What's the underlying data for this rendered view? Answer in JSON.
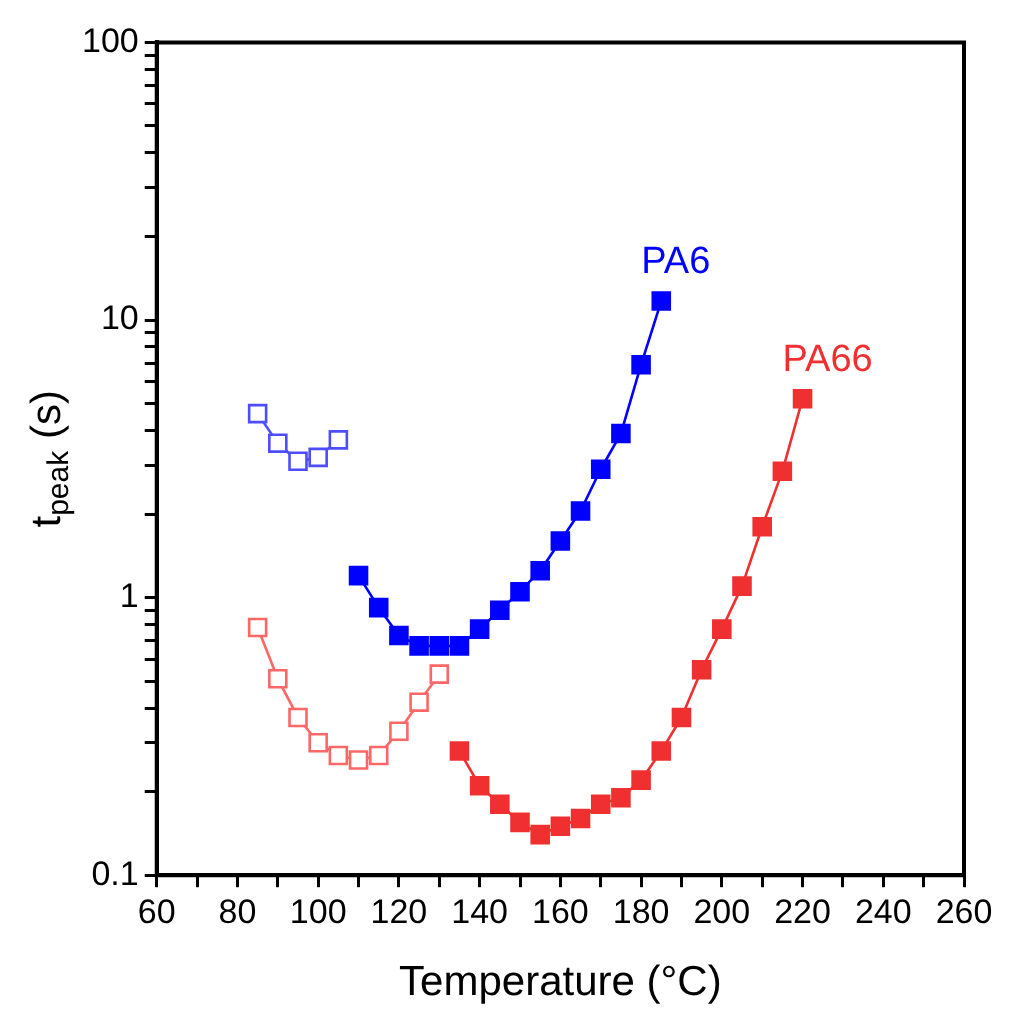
{
  "chart_data": {
    "type": "line",
    "xlabel": "Temperature (°C)",
    "ylabel": "t$_{peak}$ (s)",
    "log": "y",
    "grid": false,
    "legend": false,
    "marker": "square",
    "xlim": [
      60,
      260
    ],
    "ylim": [
      0.1,
      100
    ],
    "xticks": [
      60,
      {
        "value": 70,
        "label": null
      },
      80,
      {
        "value": 90,
        "label": null
      },
      100,
      {
        "value": 110,
        "label": null
      },
      120,
      {
        "value": 130,
        "label": null
      },
      140,
      {
        "value": 150,
        "label": null
      },
      160,
      {
        "value": 170,
        "label": null
      },
      180,
      {
        "value": 190,
        "label": null
      },
      200,
      {
        "value": 210,
        "label": null
      },
      220,
      {
        "value": 230,
        "label": null
      },
      240,
      {
        "value": 250,
        "label": null
      },
      260
    ],
    "yticks": [
      0.1,
      {
        "value": 0.2,
        "label": null
      },
      {
        "value": 0.3,
        "label": null
      },
      {
        "value": 0.4,
        "label": null
      },
      {
        "value": 0.5,
        "label": null
      },
      {
        "value": 0.6,
        "label": null
      },
      {
        "value": 0.7,
        "label": null
      },
      {
        "value": 0.8,
        "label": null
      },
      {
        "value": 0.9,
        "label": null
      },
      1,
      {
        "value": 2,
        "label": null
      },
      {
        "value": 3,
        "label": null
      },
      {
        "value": 4,
        "label": null
      },
      {
        "value": 5,
        "label": null
      },
      {
        "value": 6,
        "label": null
      },
      {
        "value": 7,
        "label": null
      },
      {
        "value": 8,
        "label": null
      },
      {
        "value": 9,
        "label": null
      },
      10,
      {
        "value": 20,
        "label": null
      },
      {
        "value": 30,
        "label": null
      },
      {
        "value": 40,
        "label": null
      },
      {
        "value": 50,
        "label": null
      },
      {
        "value": 60,
        "label": null
      },
      {
        "value": 70,
        "label": null
      },
      {
        "value": 80,
        "label": null
      },
      {
        "value": 90,
        "label": null
      },
      100
    ],
    "series": [
      {
        "color": "#4d4dff",
        "x": [
          85,
          90,
          95,
          100,
          105
        ],
        "values": [
          4.6,
          3.6,
          3.1,
          3.2,
          3.7
        ]
      },
      {
        "name": "PA6",
        "color": "#0000ff",
        "x": [
          110,
          115,
          120,
          125,
          130,
          135,
          140,
          145,
          150,
          155,
          160,
          165,
          170,
          175,
          180,
          185
        ],
        "values": [
          1.2,
          0.92,
          0.73,
          0.67,
          0.67,
          0.67,
          0.77,
          0.9,
          1.05,
          1.25,
          1.6,
          2.05,
          2.9,
          3.9,
          6.9,
          11.7
        ]
      },
      {
        "color": "#ff6666",
        "x": [
          85,
          90,
          95,
          100,
          105,
          110,
          115,
          120,
          125,
          130
        ],
        "values": [
          0.78,
          0.51,
          0.37,
          0.3,
          0.27,
          0.26,
          0.27,
          0.33,
          0.42,
          0.53
        ]
      },
      {
        "name": "PA66",
        "color": "#f03030",
        "x": [
          135,
          140,
          145,
          150,
          155,
          160,
          165,
          170,
          175,
          180,
          185,
          190,
          195,
          200,
          205,
          210,
          215,
          220
        ],
        "values": [
          0.28,
          0.21,
          0.18,
          0.155,
          0.14,
          0.15,
          0.16,
          0.18,
          0.19,
          0.22,
          0.28,
          0.37,
          0.55,
          0.77,
          1.1,
          1.8,
          2.85,
          5.2
        ]
      }
    ]
  }
}
